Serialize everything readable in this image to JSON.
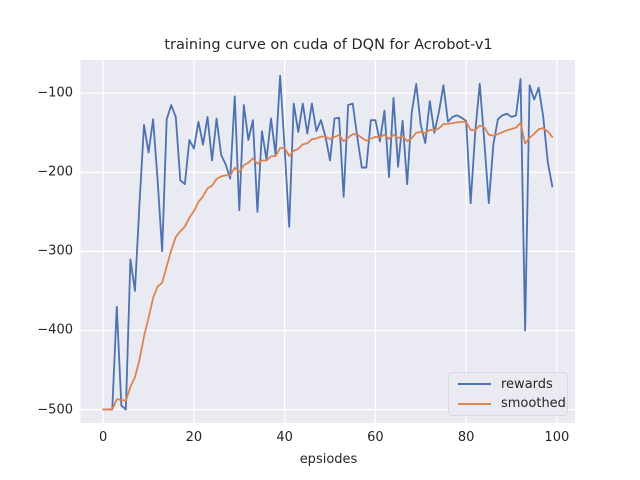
{
  "chart_data": {
    "type": "line",
    "title": "training curve on cuda of DQN for Acrobot-v1",
    "xlabel": "epsiodes",
    "ylabel": "",
    "xlim": [
      -5,
      104
    ],
    "ylim": [
      -517,
      -58
    ],
    "grid": true,
    "legend_position": "lower right",
    "xticks": [
      {
        "v": 0,
        "label": "0"
      },
      {
        "v": 20,
        "label": "20"
      },
      {
        "v": 40,
        "label": "40"
      },
      {
        "v": 60,
        "label": "60"
      },
      {
        "v": 80,
        "label": "80"
      },
      {
        "v": 100,
        "label": "100"
      }
    ],
    "yticks": [
      {
        "v": -100,
        "label": "−100"
      },
      {
        "v": -200,
        "label": "−200"
      },
      {
        "v": -300,
        "label": "−300"
      },
      {
        "v": -400,
        "label": "−400"
      },
      {
        "v": -500,
        "label": "−500"
      }
    ],
    "colors": {
      "axes_bg": "#EAEAF2",
      "grid": "#FFFFFF",
      "text": "#262626"
    },
    "series": [
      {
        "name": "rewards",
        "color": "#4C72B0",
        "x_start": 0,
        "x_step": 1,
        "values": [
          -500,
          -500,
          -500,
          -370,
          -495,
          -500,
          -310,
          -350,
          -240,
          -140,
          -175,
          -133,
          -210,
          -300,
          -133,
          -115,
          -130,
          -210,
          -215,
          -159,
          -170,
          -136,
          -165,
          -130,
          -185,
          -132,
          -178,
          -190,
          -208,
          -104,
          -248,
          -115,
          -159,
          -134,
          -250,
          -148,
          -184,
          -132,
          -178,
          -78,
          -170,
          -269,
          -113,
          -149,
          -113,
          -151,
          -113,
          -148,
          -134,
          -155,
          -185,
          -132,
          -131,
          -231,
          -115,
          -113,
          -155,
          -194,
          -194,
          -134,
          -134,
          -161,
          -122,
          -206,
          -106,
          -193,
          -135,
          -215,
          -125,
          -88,
          -140,
          -163,
          -110,
          -150,
          -124,
          -90,
          -136,
          -130,
          -128,
          -131,
          -135,
          -239,
          -150,
          -88,
          -160,
          -239,
          -165,
          -133,
          -128,
          -126,
          -130,
          -128,
          -82,
          -400,
          -90,
          -108,
          -93,
          -130,
          -187,
          -218
        ]
      },
      {
        "name": "smoothed",
        "color": "#DD8452",
        "derived_from": "rewards",
        "method": "exponential_moving_average",
        "alpha": 0.1
      }
    ]
  },
  "legend": {
    "items": [
      {
        "label": "rewards",
        "color": "#4C72B0"
      },
      {
        "label": "smoothed",
        "color": "#DD8452"
      }
    ]
  }
}
